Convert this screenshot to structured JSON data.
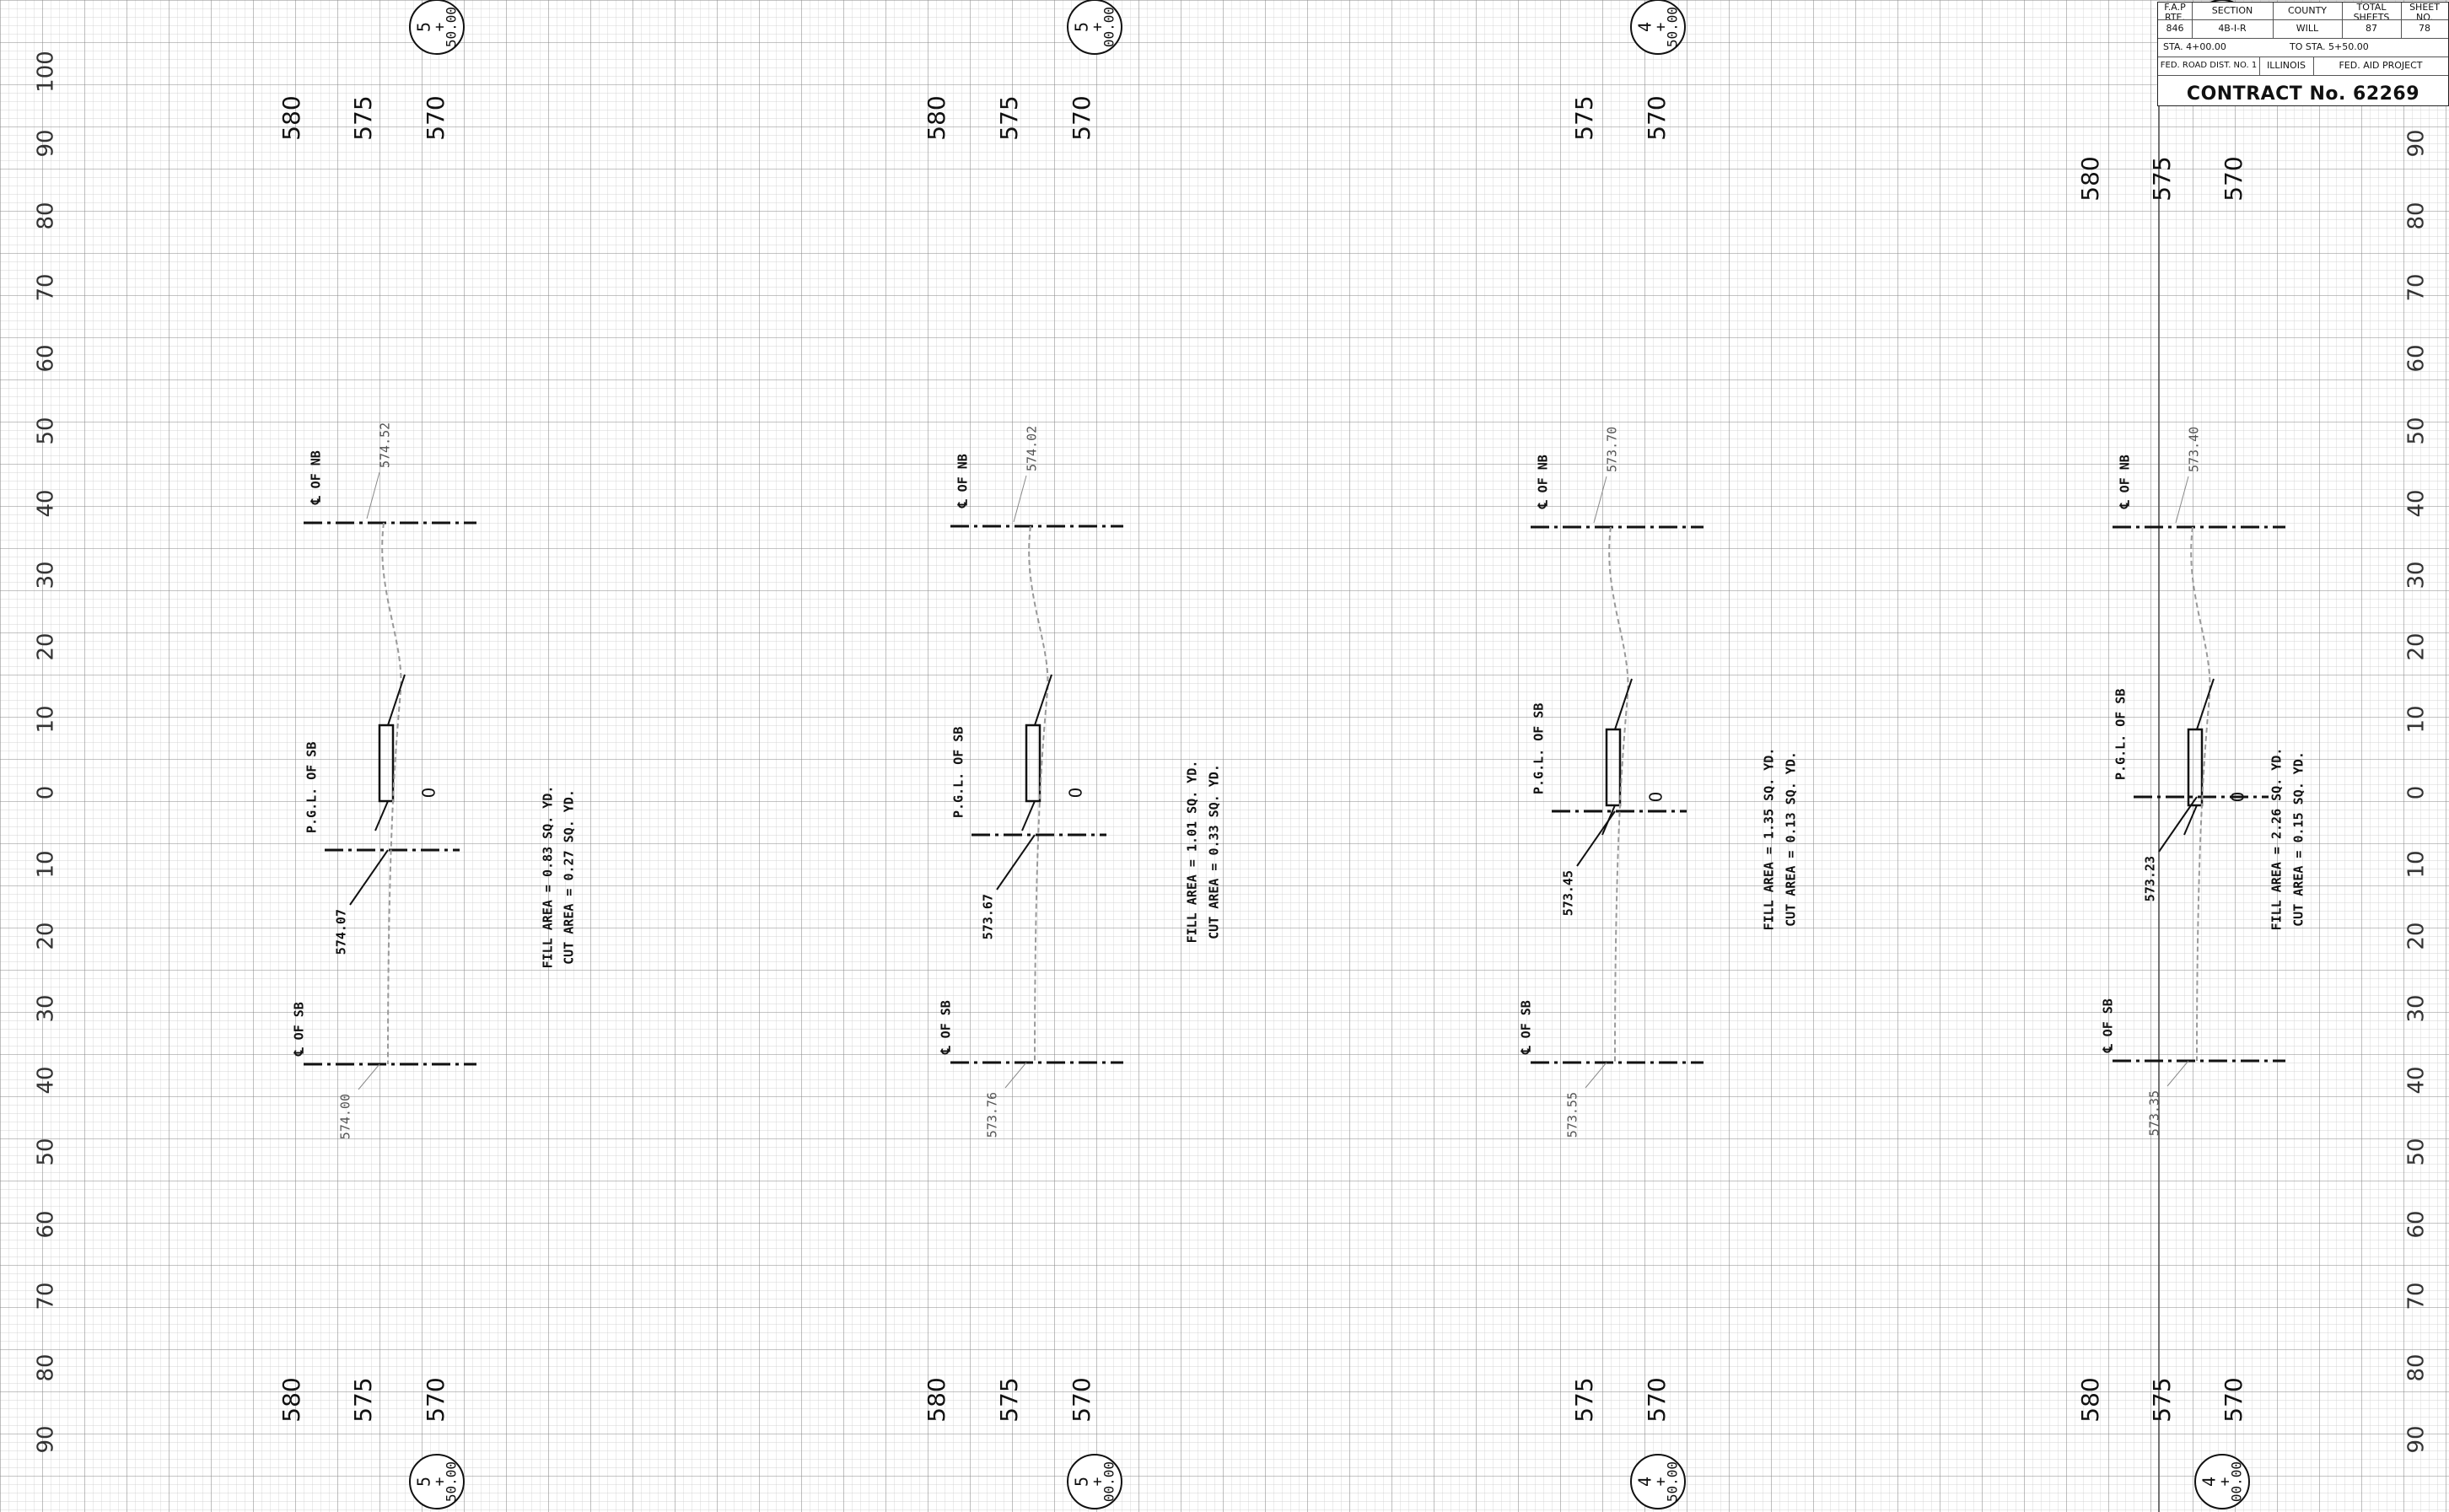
{
  "title_block": {
    "headers": [
      "F.A.P RTE.",
      "SECTION",
      "COUNTY",
      "TOTAL SHEETS",
      "SHEET NO."
    ],
    "values": [
      "846",
      "4B-I-R",
      "WILL",
      "87",
      "78"
    ],
    "sta_from": "STA. 4+00.00",
    "sta_to": "TO STA. 5+50.00",
    "fed_dist": "FED. ROAD DIST. NO. 1",
    "state": "ILLINOIS",
    "fed_project": "FED. AID PROJECT",
    "contract": "CONTRACT No. 62269"
  },
  "offset_scale": {
    "left_labels": [
      "100",
      "90",
      "80",
      "70",
      "60",
      "50",
      "40",
      "30",
      "20",
      "10",
      "0",
      "10",
      "20",
      "30",
      "40",
      "50",
      "60",
      "70",
      "80",
      "90"
    ],
    "right_labels": [
      "90",
      "80",
      "70",
      "60",
      "50",
      "40",
      "30",
      "20",
      "10",
      "0",
      "10",
      "20",
      "30",
      "40",
      "50",
      "60",
      "70",
      "80",
      "90"
    ]
  },
  "sections": [
    {
      "station": {
        "top": "5",
        "bottom": "50.00"
      },
      "elev_top": [
        "580",
        "575",
        "570"
      ],
      "elev_bottom": [
        "580",
        "575",
        "570"
      ],
      "nb_label": "℄ OF NB",
      "nb_elev": "574.52",
      "pgl_label": "P.G.L. OF SB",
      "pgl_elev": "574.07",
      "sb_label": "℄ OF SB",
      "sb_elev": "574.00",
      "zero_label": "0",
      "fill": "FILL AREA = 0.83 SQ. YD.",
      "cut": "CUT AREA = 0.27 SQ. YD."
    },
    {
      "station": {
        "top": "5",
        "bottom": "00.00"
      },
      "elev_top": [
        "580",
        "575",
        "570"
      ],
      "elev_bottom": [
        "580",
        "575",
        "570"
      ],
      "nb_label": "℄ OF NB",
      "nb_elev": "574.02",
      "pgl_label": "P.G.L. OF SB",
      "pgl_elev": "573.67",
      "sb_label": "℄ OF SB",
      "sb_elev": "573.76",
      "zero_label": "0",
      "fill": "FILL AREA = 1.01 SQ. YD.",
      "cut": "CUT AREA = 0.33 SQ. YD."
    },
    {
      "station": {
        "top": "4",
        "bottom": "50.00"
      },
      "elev_top": [
        "575",
        "570"
      ],
      "elev_bottom": [
        "575",
        "570"
      ],
      "nb_label": "℄ OF NB",
      "nb_elev": "573.70",
      "pgl_label": "P.G.L. OF SB",
      "pgl_elev": "573.45",
      "sb_label": "℄ OF SB",
      "sb_elev": "573.55",
      "zero_label": "0",
      "fill": "FILL AREA = 1.35 SQ. YD.",
      "cut": "CUT AREA = 0.13 SQ. YD."
    },
    {
      "station": {
        "top": "4",
        "bottom": "00.00"
      },
      "elev_top": [
        "580",
        "575",
        "570"
      ],
      "elev_bottom": [
        "580",
        "575",
        "570"
      ],
      "nb_label": "℄ OF NB",
      "nb_elev": "573.40",
      "pgl_label": "P.G.L. OF SB",
      "pgl_elev": "573.23",
      "sb_label": "℄ OF SB",
      "sb_elev": "573.35",
      "zero_label": "0",
      "fill": "FILL AREA = 2.26 SQ. YD.",
      "cut": "CUT AREA = 0.15 SQ. YD."
    }
  ]
}
